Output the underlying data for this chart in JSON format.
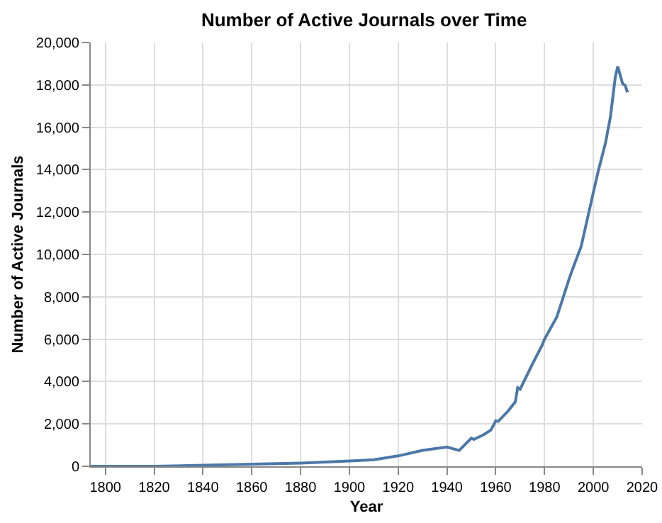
{
  "chart_data": {
    "type": "line",
    "title": "Number of Active Journals over Time",
    "xlabel": "Year",
    "ylabel": "Number of Active Journals",
    "x": [
      1794,
      1800,
      1820,
      1840,
      1860,
      1880,
      1900,
      1910,
      1920,
      1930,
      1940,
      1945,
      1950,
      1951,
      1955,
      1958,
      1960,
      1961,
      1965,
      1968,
      1969,
      1970,
      1975,
      1979,
      1980,
      1985,
      1990,
      1991,
      1995,
      2000,
      2002,
      2005,
      2007,
      2009,
      2010,
      2012,
      2013,
      2014
    ],
    "series": [
      {
        "color": "#4c78a8",
        "values": [
          0,
          0,
          0,
          50,
          100,
          150,
          250,
          310,
          490,
          750,
          910,
          750,
          1330,
          1270,
          1490,
          1710,
          2150,
          2120,
          2600,
          3040,
          3710,
          3640,
          4820,
          5710,
          6000,
          7040,
          8820,
          9150,
          10380,
          12930,
          13930,
          15270,
          16490,
          18380,
          18870,
          18050,
          17980,
          17650
        ]
      }
    ],
    "xlim": [
      1794,
      2020
    ],
    "xticks": [
      1800,
      1820,
      1840,
      1860,
      1880,
      1900,
      1920,
      1940,
      1960,
      1980,
      2000,
      2020
    ],
    "ylim": [
      0,
      20000
    ],
    "yticks": [
      {
        "value": 0,
        "label": "0"
      },
      {
        "value": 2000,
        "label": "2,000"
      },
      {
        "value": 4000,
        "label": "4,000"
      },
      {
        "value": 6000,
        "label": "6,000"
      },
      {
        "value": 8000,
        "label": "8,000"
      },
      {
        "value": 10000,
        "label": "10,000"
      },
      {
        "value": 12000,
        "label": "12,000"
      },
      {
        "value": 14000,
        "label": "14,000"
      },
      {
        "value": 16000,
        "label": "16,000"
      },
      {
        "value": 18000,
        "label": "18,000"
      },
      {
        "value": 20000,
        "label": "20,000"
      }
    ],
    "grid": true,
    "marker": "none",
    "line_style": "solid"
  }
}
